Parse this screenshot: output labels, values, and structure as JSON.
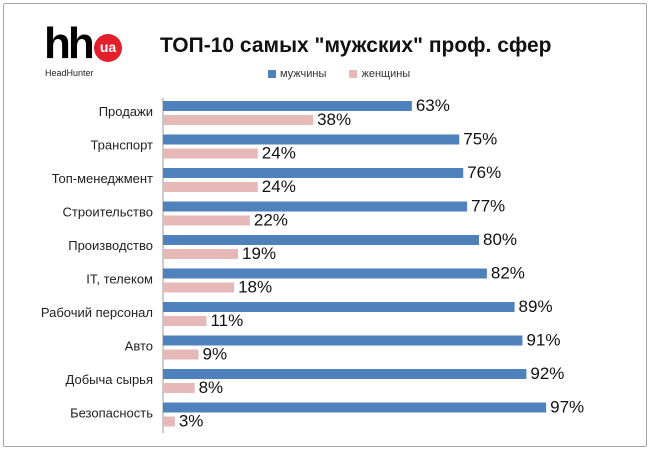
{
  "logo": {
    "main_text": "hh",
    "badge_text": "ua",
    "sub_text": "HeadHunter",
    "badge_color": "#e2202c"
  },
  "chart_data": {
    "type": "bar",
    "orientation": "horizontal",
    "title": "ТОП-10 самых \"мужских\" проф. сфер",
    "legend_position": "top",
    "grid": false,
    "xlim": [
      0,
      100
    ],
    "value_suffix": "%",
    "categories": [
      "Продажи",
      "Транспорт",
      "Топ-менеджмент",
      "Строительство",
      "Производство",
      "IT, телеком",
      "Рабочий персонал",
      "Авто",
      "Добыча сырья",
      "Безопасность"
    ],
    "series": [
      {
        "name": "мужчины",
        "color": "#4f81bd",
        "values": [
          63,
          75,
          76,
          77,
          80,
          82,
          89,
          91,
          92,
          97
        ]
      },
      {
        "name": "женщины",
        "color": "#e6b9b8",
        "values": [
          38,
          24,
          24,
          22,
          19,
          18,
          11,
          9,
          8,
          3
        ]
      }
    ]
  }
}
